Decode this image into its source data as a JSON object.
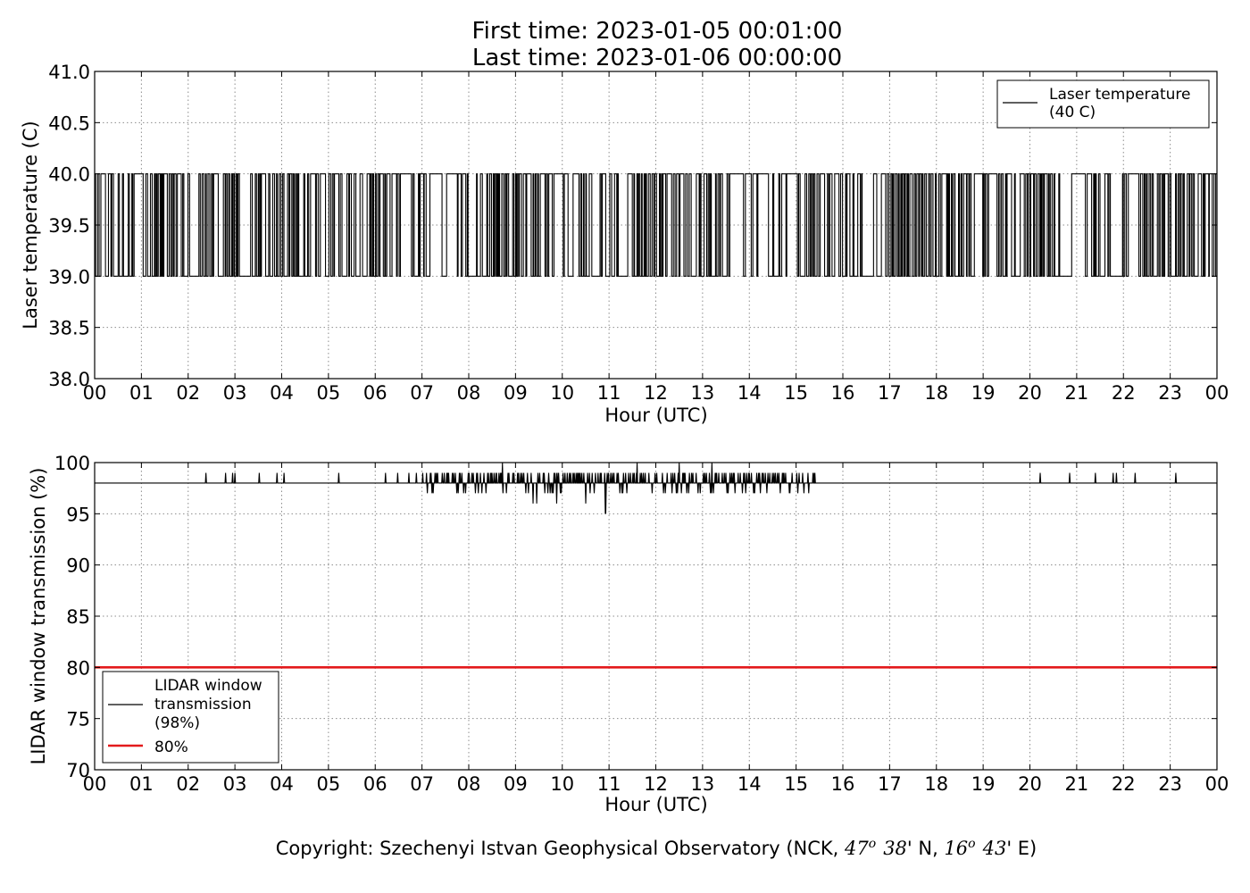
{
  "title": {
    "line1": "First time: 2023-01-05 00:01:00",
    "line2": "Last time: 2023-01-06 00:00:00"
  },
  "copyright": {
    "prefix": "Copyright: Szechenyi Istvan Geophysical Observatory (NCK, ",
    "lat_deg": "47",
    "lat_min": "38",
    "lat_suffix": "' N, ",
    "lon_deg": "16",
    "lon_min": "43",
    "lon_suffix": "' E)",
    "degree_symbol": "o"
  },
  "colors": {
    "series": "#000000",
    "threshold": "#e31a1c",
    "grid": "#8c8c8c"
  },
  "chart_data": [
    {
      "type": "line",
      "xlabel": "Hour (UTC)",
      "ylabel": "Laser temperature (C)",
      "xlim": [
        0,
        24
      ],
      "ylim": [
        38.0,
        41.0
      ],
      "grid": true,
      "legend_placement": "top-right",
      "xtick_values": [
        0,
        1,
        2,
        3,
        4,
        5,
        6,
        7,
        8,
        9,
        10,
        11,
        12,
        13,
        14,
        15,
        16,
        17,
        18,
        19,
        20,
        21,
        22,
        23,
        24
      ],
      "xtick_labels": [
        "00",
        "01",
        "02",
        "03",
        "04",
        "05",
        "06",
        "07",
        "08",
        "09",
        "10",
        "11",
        "12",
        "13",
        "14",
        "15",
        "16",
        "17",
        "18",
        "19",
        "20",
        "21",
        "22",
        "23",
        "00"
      ],
      "ytick_values": [
        38.0,
        38.5,
        39.0,
        39.5,
        40.0,
        40.5,
        41.0
      ],
      "ytick_labels": [
        "38.0",
        "38.5",
        "39.0",
        "39.5",
        "40.0",
        "40.5",
        "41.0"
      ],
      "series": [
        {
          "name": "Laser temperature\n(40 C)",
          "legend_lines": [
            "Laser temperature",
            "(40 C)"
          ],
          "color": "#000000",
          "values_range": [
            39.0,
            40.0
          ],
          "behavior": "alternates rapidly between 39.0 and 40.0 for the entire day"
        }
      ]
    },
    {
      "type": "line",
      "xlabel": "Hour (UTC)",
      "ylabel": "LIDAR window transmission (%)",
      "xlim": [
        0,
        24
      ],
      "ylim": [
        70,
        100
      ],
      "grid": true,
      "legend_placement": "lower-left",
      "xtick_values": [
        0,
        1,
        2,
        3,
        4,
        5,
        6,
        7,
        8,
        9,
        10,
        11,
        12,
        13,
        14,
        15,
        16,
        17,
        18,
        19,
        20,
        21,
        22,
        23,
        24
      ],
      "xtick_labels": [
        "00",
        "01",
        "02",
        "03",
        "04",
        "05",
        "06",
        "07",
        "08",
        "09",
        "10",
        "11",
        "12",
        "13",
        "14",
        "15",
        "16",
        "17",
        "18",
        "19",
        "20",
        "21",
        "22",
        "23",
        "00"
      ],
      "ytick_values": [
        70,
        75,
        80,
        85,
        90,
        95,
        100
      ],
      "ytick_labels": [
        "70",
        "75",
        "80",
        "85",
        "90",
        "95",
        "100"
      ],
      "series": [
        {
          "name": "LIDAR window\ntransmission\n(98%)",
          "legend_lines": [
            "LIDAR window",
            "transmission",
            "(98%)"
          ],
          "color": "#000000",
          "baseline": 98,
          "spikes_up": [
            {
              "x": 2.38,
              "y": 99
            },
            {
              "x": 2.8,
              "y": 99
            },
            {
              "x": 2.95,
              "y": 99
            },
            {
              "x": 3.0,
              "y": 99
            },
            {
              "x": 3.52,
              "y": 99
            },
            {
              "x": 3.9,
              "y": 99
            },
            {
              "x": 4.05,
              "y": 99
            },
            {
              "x": 5.22,
              "y": 99
            },
            {
              "x": 6.22,
              "y": 99
            },
            {
              "x": 6.48,
              "y": 99
            },
            {
              "x": 6.72,
              "y": 99
            },
            {
              "x": 6.88,
              "y": 99
            },
            {
              "x": 20.22,
              "y": 99
            },
            {
              "x": 20.85,
              "y": 99
            },
            {
              "x": 21.4,
              "y": 99
            },
            {
              "x": 21.78,
              "y": 99
            },
            {
              "x": 21.85,
              "y": 99
            },
            {
              "x": 22.25,
              "y": 99
            },
            {
              "x": 23.12,
              "y": 99
            }
          ],
          "active_segments": [
            {
              "x_start": 7.0,
              "x_end": 8.6,
              "min": 97,
              "max": 99
            },
            {
              "x_start": 8.6,
              "x_end": 9.0,
              "min": 96,
              "max": 100
            },
            {
              "x_start": 9.0,
              "x_end": 11.0,
              "min": 95,
              "max": 99
            },
            {
              "x_start": 11.0,
              "x_end": 12.3,
              "min": 96,
              "max": 100
            },
            {
              "x_start": 12.3,
              "x_end": 13.4,
              "min": 97,
              "max": 100
            },
            {
              "x_start": 13.4,
              "x_end": 15.45,
              "min": 97,
              "max": 99
            }
          ],
          "notable_points": [
            {
              "x": 8.72,
              "y": 100
            },
            {
              "x": 9.88,
              "y": 96
            },
            {
              "x": 10.92,
              "y": 95
            },
            {
              "x": 11.6,
              "y": 100
            },
            {
              "x": 12.5,
              "y": 100
            },
            {
              "x": 13.2,
              "y": 100
            }
          ]
        },
        {
          "name": "80%",
          "legend_lines": [
            "80%"
          ],
          "color": "#e31a1c",
          "constant": 80
        }
      ]
    }
  ]
}
